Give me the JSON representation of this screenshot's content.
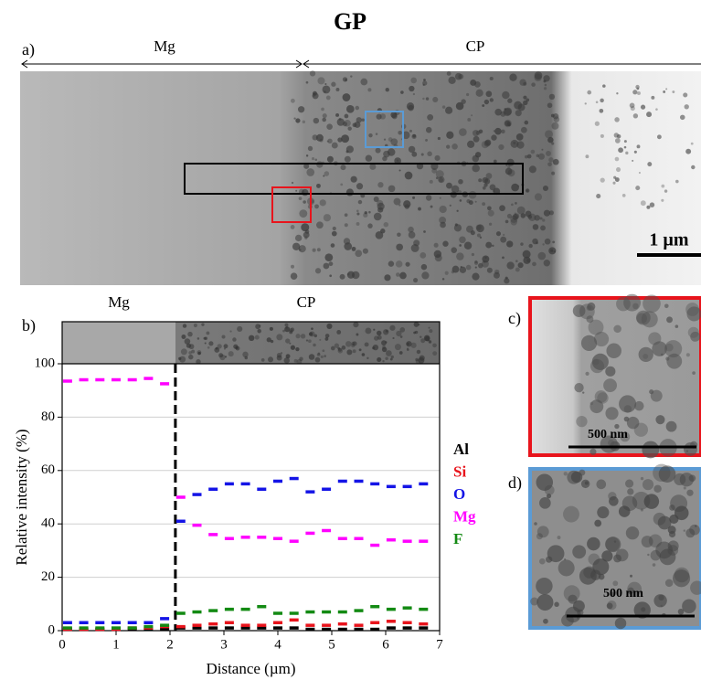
{
  "figure": {
    "title": "GP",
    "panel_a": "a)",
    "region_left": "Mg",
    "region_right": "CP",
    "scale_a": "1 µm",
    "panel_b": "b)",
    "strip_left": "Mg",
    "strip_right": "CP",
    "panel_c": "c)",
    "scale_c": "500 nm",
    "panel_d": "d)",
    "scale_d": "500 nm"
  },
  "chart_data": {
    "type": "scatter-dash",
    "xlabel": "Distance (µm)",
    "ylabel": "Relative intensity (%)",
    "x": [
      0.1,
      0.4,
      0.7,
      1.0,
      1.3,
      1.6,
      1.9,
      2.2,
      2.5,
      2.8,
      3.1,
      3.4,
      3.7,
      4.0,
      4.3,
      4.6,
      4.9,
      5.2,
      5.5,
      5.8,
      6.1,
      6.4,
      6.7
    ],
    "series": [
      {
        "name": "Al",
        "color": "#000000",
        "values": [
          0.5,
          0.5,
          0.5,
          0.5,
          0.5,
          0.5,
          0.5,
          1,
          1,
          1,
          1,
          1,
          1,
          1,
          1,
          0.5,
          0.5,
          0.5,
          0.5,
          0.5,
          1,
          1,
          1
        ]
      },
      {
        "name": "Si",
        "color": "#e8141c",
        "values": [
          0.5,
          0.5,
          0.5,
          0.5,
          1,
          1,
          1.5,
          1.5,
          2,
          2.5,
          3,
          2,
          2,
          3,
          4,
          2,
          2,
          2.5,
          2,
          3,
          3.5,
          3,
          2.5
        ]
      },
      {
        "name": "O",
        "color": "#1414e6",
        "values": [
          3,
          3,
          3,
          3,
          3,
          3,
          4.5,
          41,
          51,
          53,
          55,
          55,
          53,
          56,
          57,
          52,
          53,
          56,
          56,
          55,
          54,
          54,
          55
        ]
      },
      {
        "name": "Mg",
        "color": "#ff00ff",
        "values": [
          93.5,
          94,
          94,
          94,
          94,
          94.5,
          92.5,
          50,
          39.5,
          36,
          34.5,
          35,
          35,
          34.5,
          33.5,
          36.5,
          37.5,
          34.5,
          34.5,
          32,
          34,
          33.5,
          33.5
        ]
      },
      {
        "name": "F",
        "color": "#138a13",
        "values": [
          1,
          1,
          1,
          1,
          1,
          1.5,
          2,
          6.5,
          7,
          7.5,
          8,
          8,
          9,
          6.5,
          6.5,
          7,
          7,
          7,
          7.5,
          9,
          8,
          8.5,
          8
        ]
      }
    ],
    "divider_x": 2.1,
    "xlim": [
      0,
      7
    ],
    "xticks": [
      0,
      1,
      2,
      3,
      4,
      5,
      6,
      7
    ],
    "ylim": [
      0,
      100
    ],
    "yticks": [
      0,
      20,
      40,
      60,
      80,
      100
    ],
    "grid": true
  }
}
